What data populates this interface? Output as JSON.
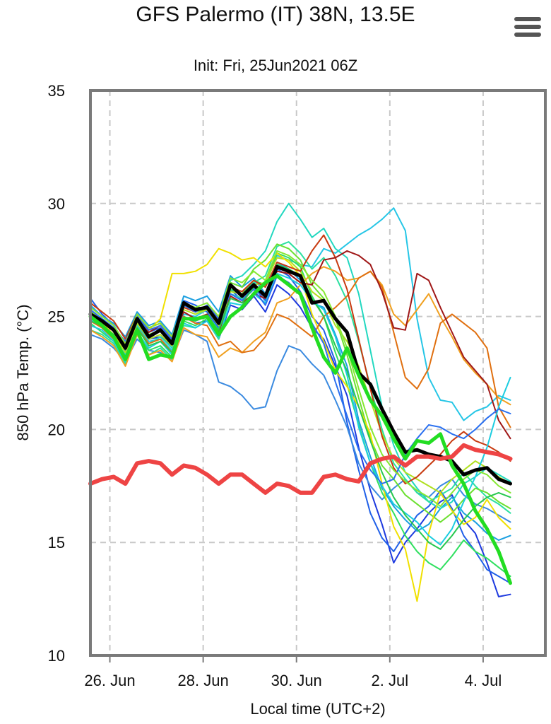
{
  "header": {
    "title": "GFS Palermo (IT) 38N, 13.5E",
    "subtitle": "Init: Fri, 25Jun2021 06Z",
    "menu_icon": "hamburger-menu-icon"
  },
  "chart_data": {
    "type": "line",
    "title": "GFS Palermo (IT) 38N, 13.5E",
    "subtitle": "Init: Fri, 25Jun2021 06Z",
    "xlabel": "Local time (UTC+2)",
    "ylabel": "850 hPa Temp. (°C)",
    "ylim": [
      10,
      35
    ],
    "yticks": [
      10,
      15,
      20,
      25,
      30,
      35
    ],
    "xlim": [
      "2021-06-25T14:00",
      "2021-07-05T08:00"
    ],
    "xticks": [
      {
        "x": "2021-06-26T00:00",
        "label": "26. Jun"
      },
      {
        "x": "2021-06-28T00:00",
        "label": "28. Jun"
      },
      {
        "x": "2021-06-30T00:00",
        "label": "30. Jun"
      },
      {
        "x": "2021-07-02T00:00",
        "label": "2. Jul"
      },
      {
        "x": "2021-07-04T00:00",
        "label": "4. Jul"
      }
    ],
    "grid": true,
    "legend": "none",
    "x_start": "2021-06-25T14:00",
    "x_step_hours": 6,
    "series": [
      {
        "role": "main",
        "color": "#000000",
        "width": 5,
        "values": [
          25.1,
          24.8,
          24.4,
          23.6,
          24.9,
          24.1,
          24.4,
          23.8,
          25.6,
          25.3,
          25.4,
          24.7,
          26.4,
          25.9,
          26.4,
          25.9,
          27.2,
          27.0,
          26.8,
          25.6,
          25.7,
          24.9,
          24.3,
          22.5,
          22.0,
          20.9,
          19.9,
          19.0,
          19.1,
          18.9,
          18.8,
          18.6,
          18.0,
          18.2,
          18.3,
          17.8,
          17.6
        ]
      },
      {
        "role": "control",
        "color": "#22dd22",
        "width": 5,
        "values": [
          25.0,
          24.6,
          24.1,
          23.1,
          24.4,
          23.1,
          23.3,
          23.2,
          24.9,
          24.9,
          25.0,
          24.2,
          25.0,
          25.4,
          26.0,
          26.5,
          26.8,
          26.4,
          26.0,
          24.5,
          23.2,
          22.5,
          23.6,
          22.4,
          21.3,
          20.6,
          19.6,
          18.7,
          19.5,
          19.4,
          19.8,
          18.4,
          17.6,
          16.4,
          15.6,
          14.6,
          13.2
        ]
      },
      {
        "role": "climatology",
        "color": "#ee4444",
        "width": 6,
        "values": [
          17.6,
          17.8,
          17.9,
          17.6,
          18.5,
          18.6,
          18.5,
          18.0,
          18.4,
          18.3,
          18.0,
          17.6,
          18.0,
          18.0,
          17.6,
          17.2,
          17.6,
          17.5,
          17.2,
          17.2,
          17.9,
          18.0,
          17.8,
          17.7,
          18.5,
          18.7,
          18.8,
          18.4,
          18.8,
          18.8,
          18.7,
          18.8,
          19.3,
          19.1,
          19.0,
          18.9,
          18.7
        ]
      },
      {
        "color": "#1e3adf",
        "width": 2,
        "values": [
          25.3,
          24.8,
          24.4,
          23.5,
          24.6,
          24.0,
          24.1,
          23.7,
          25.0,
          24.7,
          24.8,
          24.0,
          25.5,
          25.3,
          25.9,
          25.2,
          26.4,
          26.0,
          25.4,
          24.5,
          24.0,
          22.8,
          21.5,
          19.2,
          17.3,
          15.8,
          14.1,
          15.0,
          15.6,
          16.3,
          16.8,
          17.1,
          16.0,
          15.4,
          14.1,
          12.6,
          12.7
        ]
      },
      {
        "color": "#2060e8",
        "width": 2,
        "values": [
          25.8,
          25.1,
          24.6,
          23.8,
          25.0,
          24.3,
          24.5,
          23.9,
          25.7,
          25.5,
          25.2,
          24.5,
          26.2,
          25.7,
          26.3,
          25.7,
          27.1,
          26.8,
          26.1,
          25.0,
          24.4,
          23.0,
          20.3,
          18.2,
          16.3,
          15.2,
          14.6,
          15.4,
          16.2,
          16.6,
          17.3,
          16.5,
          15.3,
          14.6,
          13.8,
          13.5,
          13.2
        ]
      },
      {
        "color": "#3a8ae0",
        "width": 2,
        "values": [
          24.2,
          24.0,
          23.6,
          23.0,
          24.0,
          23.5,
          23.4,
          23.1,
          24.4,
          24.2,
          23.9,
          22.1,
          21.9,
          21.5,
          20.9,
          21.0,
          22.6,
          23.7,
          23.5,
          22.9,
          22.4,
          21.3,
          20.1,
          18.5,
          17.5,
          16.9,
          17.4,
          17.8,
          17.2,
          17.0,
          17.5,
          17.8,
          17.1,
          16.7,
          16.5,
          16.2,
          15.9
        ]
      },
      {
        "color": "#1a9fe0",
        "width": 2,
        "values": [
          25.5,
          25.0,
          24.7,
          24.1,
          25.2,
          24.6,
          24.8,
          24.2,
          25.9,
          25.7,
          25.9,
          25.2,
          26.8,
          26.3,
          26.7,
          26.0,
          27.4,
          27.1,
          26.6,
          25.6,
          25.4,
          24.2,
          22.8,
          20.4,
          18.8,
          17.4,
          16.6,
          16.0,
          15.5,
          15.8,
          16.5,
          17.0,
          16.3,
          15.9,
          15.4,
          15.1,
          15.3
        ]
      },
      {
        "color": "#26c6e6",
        "width": 2,
        "values": [
          24.9,
          24.5,
          24.0,
          23.3,
          24.6,
          23.9,
          24.0,
          23.5,
          25.1,
          25.0,
          25.3,
          24.7,
          26.3,
          26.1,
          26.5,
          26.4,
          27.7,
          27.5,
          27.3,
          27.2,
          28.0,
          27.8,
          28.2,
          28.6,
          28.9,
          29.3,
          29.8,
          28.8,
          24.9,
          22.3,
          21.3,
          21.2,
          20.4,
          20.8,
          21.0,
          21.5,
          21.3
        ]
      },
      {
        "color": "#22d8c0",
        "width": 2,
        "values": [
          25.0,
          24.6,
          24.2,
          23.4,
          24.6,
          23.8,
          24.1,
          23.6,
          25.0,
          24.8,
          25.1,
          24.4,
          26.6,
          26.8,
          27.3,
          27.9,
          29.2,
          30.0,
          29.3,
          28.5,
          28.9,
          28.0,
          27.6,
          26.0,
          23.5,
          21.0,
          19.3,
          18.1,
          17.4,
          16.8,
          16.5,
          16.8,
          17.6,
          17.9,
          18.3,
          18.0,
          17.7
        ]
      },
      {
        "color": "#2be0a0",
        "width": 2,
        "values": [
          24.4,
          24.2,
          23.8,
          22.9,
          24.2,
          23.3,
          23.6,
          23.1,
          24.6,
          24.5,
          24.8,
          24.0,
          26.0,
          25.8,
          26.5,
          26.8,
          28.1,
          28.3,
          27.8,
          27.1,
          27.6,
          26.8,
          25.7,
          23.9,
          21.9,
          20.0,
          18.5,
          17.8,
          17.2,
          16.8,
          17.1,
          17.4,
          18.1,
          17.5,
          17.0,
          16.7,
          16.3
        ]
      },
      {
        "color": "#30e060",
        "width": 2,
        "values": [
          24.7,
          24.3,
          23.9,
          23.1,
          24.3,
          23.5,
          23.7,
          23.2,
          24.8,
          24.6,
          24.9,
          24.1,
          26.2,
          26.0,
          26.6,
          26.4,
          27.8,
          27.6,
          27.2,
          25.9,
          25.0,
          23.4,
          22.0,
          20.2,
          18.5,
          17.2,
          16.3,
          15.3,
          14.6,
          14.1,
          13.8,
          14.4,
          15.1,
          14.6,
          14.3,
          13.9,
          13.5
        ]
      },
      {
        "color": "#6ce030",
        "width": 2,
        "values": [
          25.2,
          24.9,
          24.5,
          23.6,
          24.9,
          24.2,
          24.4,
          23.9,
          25.5,
          25.2,
          25.3,
          24.7,
          26.5,
          26.3,
          27.1,
          27.5,
          28.2,
          28.0,
          27.5,
          26.4,
          25.8,
          24.9,
          23.3,
          21.4,
          19.6,
          18.4,
          17.8,
          17.1,
          16.7,
          16.3,
          15.9,
          16.3,
          16.9,
          17.4,
          17.2,
          16.8,
          16.5
        ]
      },
      {
        "color": "#b0e020",
        "width": 2,
        "values": [
          25.0,
          24.7,
          24.2,
          23.4,
          24.7,
          24.0,
          24.2,
          23.7,
          25.3,
          25.1,
          25.3,
          24.6,
          26.1,
          26.0,
          26.4,
          26.5,
          27.6,
          27.5,
          27.0,
          26.1,
          25.7,
          24.6,
          23.9,
          22.8,
          21.3,
          19.8,
          18.7,
          18.1,
          17.8,
          17.5,
          17.2,
          17.8,
          18.2,
          18.6,
          18.3,
          17.9,
          17.6
        ]
      },
      {
        "color": "#f0e000",
        "width": 2,
        "values": [
          25.0,
          24.7,
          24.2,
          23.6,
          25.0,
          24.4,
          24.9,
          26.9,
          26.9,
          27.0,
          27.3,
          28.0,
          27.8,
          27.5,
          27.6,
          27.2,
          27.8,
          27.4,
          26.8,
          25.1,
          23.9,
          22.6,
          21.9,
          21.0,
          19.8,
          17.6,
          15.7,
          14.7,
          12.4,
          15.4,
          17.2,
          16.4,
          15.8,
          16.1,
          16.9,
          16.1,
          15.6
        ]
      },
      {
        "color": "#f0a020",
        "width": 2,
        "values": [
          24.4,
          24.1,
          23.7,
          22.8,
          24.2,
          23.3,
          23.5,
          23.0,
          24.5,
          24.2,
          24.1,
          23.2,
          23.6,
          23.4,
          23.9,
          24.3,
          25.6,
          25.8,
          26.4,
          26.9,
          27.2,
          27.0,
          26.6,
          26.7,
          27.0,
          26.4,
          25.1,
          24.6,
          25.3,
          26.0,
          25.0,
          24.1,
          23.1,
          22.5,
          22.0,
          21.4,
          21.1
        ]
      },
      {
        "color": "#e07010",
        "width": 2,
        "values": [
          24.8,
          24.5,
          24.0,
          23.2,
          24.5,
          23.8,
          24.0,
          23.4,
          25.0,
          24.7,
          24.6,
          23.7,
          23.9,
          23.4,
          23.5,
          24.1,
          25.1,
          24.9,
          24.5,
          24.1,
          25.0,
          25.4,
          25.9,
          26.7,
          27.0,
          26.3,
          24.3,
          22.3,
          21.8,
          22.7,
          24.7,
          25.1,
          24.7,
          24.3,
          23.6,
          21.0,
          20.1
        ]
      },
      {
        "color": "#c83a10",
        "width": 2,
        "values": [
          25.6,
          25.2,
          24.8,
          24.0,
          25.1,
          24.5,
          24.7,
          24.1,
          25.4,
          25.2,
          25.5,
          24.9,
          26.3,
          26.1,
          26.6,
          26.3,
          27.4,
          27.2,
          27.0,
          27.9,
          28.6,
          27.6,
          26.2,
          24.0,
          21.8,
          19.7,
          18.3,
          17.6,
          17.9,
          18.4,
          18.9,
          19.5,
          19.9,
          19.5,
          19.3,
          19.0,
          18.6
        ]
      },
      {
        "color": "#a01818",
        "width": 2,
        "values": [
          25.1,
          24.8,
          24.5,
          23.7,
          24.8,
          24.3,
          24.6,
          24.0,
          25.2,
          24.9,
          25.1,
          24.3,
          25.9,
          25.6,
          26.0,
          25.8,
          27.0,
          26.9,
          26.5,
          26.4,
          27.5,
          27.6,
          27.9,
          27.7,
          27.3,
          26.1,
          24.5,
          24.4,
          26.9,
          26.6,
          25.4,
          24.3,
          23.2,
          22.6,
          22.0,
          20.4,
          19.6
        ]
      },
      {
        "color": "#1ccde0",
        "width": 2,
        "values": [
          24.6,
          24.4,
          23.9,
          23.0,
          24.3,
          23.6,
          23.9,
          23.3,
          24.7,
          24.5,
          24.8,
          24.1,
          25.6,
          25.5,
          26.0,
          25.6,
          26.9,
          26.7,
          26.4,
          25.7,
          25.3,
          24.1,
          22.4,
          20.1,
          18.5,
          17.5,
          16.7,
          16.3,
          15.9,
          15.3,
          14.9,
          15.6,
          16.8,
          17.9,
          19.2,
          21.0,
          22.3
        ]
      },
      {
        "color": "#2a70f0",
        "width": 2,
        "values": [
          25.3,
          24.9,
          24.5,
          23.9,
          25.0,
          24.4,
          24.6,
          24.0,
          25.5,
          25.2,
          25.5,
          24.9,
          26.0,
          25.7,
          26.2,
          25.5,
          26.8,
          26.5,
          26.0,
          24.7,
          23.8,
          22.1,
          20.6,
          19.1,
          18.2,
          17.6,
          17.8,
          18.9,
          19.6,
          20.2,
          20.1,
          19.8,
          19.6,
          20.0,
          20.5,
          20.9,
          20.7
        ]
      },
      {
        "color": "#28c850",
        "width": 2,
        "values": [
          24.8,
          24.6,
          24.2,
          23.2,
          24.5,
          23.7,
          23.9,
          23.4,
          24.9,
          24.8,
          25.0,
          24.4,
          25.8,
          25.6,
          26.3,
          26.0,
          27.3,
          27.1,
          26.8,
          25.8,
          25.0,
          23.7,
          22.6,
          21.0,
          19.5,
          18.1,
          17.0,
          16.2,
          15.6,
          15.0,
          14.7,
          15.3,
          16.0,
          16.6,
          17.0,
          17.2,
          17.0
        ]
      },
      {
        "color": "#86e832",
        "width": 2,
        "values": [
          25.4,
          25.0,
          24.6,
          23.8,
          25.1,
          24.5,
          24.7,
          24.1,
          25.6,
          25.4,
          25.6,
          25.0,
          26.7,
          26.5,
          27.0,
          26.6,
          27.9,
          27.7,
          27.3,
          26.6,
          26.1,
          25.0,
          23.6,
          21.8,
          20.1,
          18.9,
          18.2,
          17.7,
          17.3,
          17.0,
          16.6,
          17.2,
          17.8,
          18.2,
          18.0,
          17.5,
          17.2
        ]
      }
    ]
  },
  "axes": {
    "x_title": "Local time (UTC+2)",
    "y_title": "850 hPa Temp. (°C)"
  }
}
